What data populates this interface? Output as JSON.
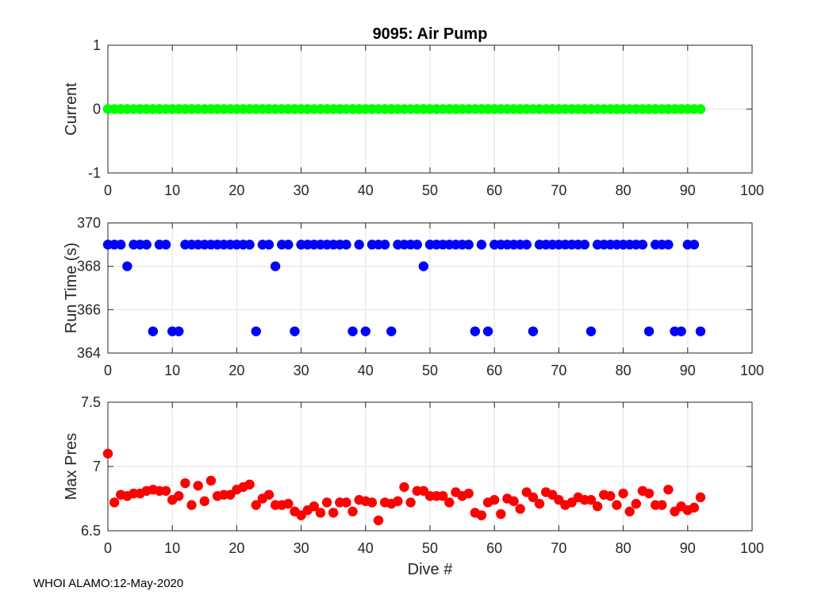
{
  "footer": "WHOI ALAMO:12-May-2020",
  "chart_data": [
    {
      "type": "scatter",
      "title": "9095: Air Pump",
      "xlabel": "",
      "ylabel": "Current",
      "xlim": [
        0,
        100
      ],
      "ylim": [
        -1,
        1
      ],
      "xticks": [
        "0",
        "10",
        "20",
        "30",
        "40",
        "50",
        "60",
        "70",
        "80",
        "90",
        "100"
      ],
      "yticks": [
        "-1",
        "0",
        "1"
      ],
      "ytick_values": [
        -1,
        0,
        1
      ],
      "grid": true,
      "color": "#00ff00",
      "x": [
        0,
        1,
        2,
        3,
        4,
        5,
        6,
        7,
        8,
        9,
        10,
        11,
        12,
        13,
        14,
        15,
        16,
        17,
        18,
        19,
        20,
        21,
        22,
        23,
        24,
        25,
        26,
        27,
        28,
        29,
        30,
        31,
        32,
        33,
        34,
        35,
        36,
        37,
        38,
        39,
        40,
        41,
        42,
        43,
        44,
        45,
        46,
        47,
        48,
        49,
        50,
        51,
        52,
        53,
        54,
        55,
        56,
        57,
        58,
        59,
        60,
        61,
        62,
        63,
        64,
        65,
        66,
        67,
        68,
        69,
        70,
        71,
        72,
        73,
        74,
        75,
        76,
        77,
        78,
        79,
        80,
        81,
        82,
        83,
        84,
        85,
        86,
        87,
        88,
        89,
        90,
        91,
        92
      ],
      "y": [
        0,
        0,
        0,
        0,
        0,
        0,
        0,
        0,
        0,
        0,
        0,
        0,
        0,
        0,
        0,
        0,
        0,
        0,
        0,
        0,
        0,
        0,
        0,
        0,
        0,
        0,
        0,
        0,
        0,
        0,
        0,
        0,
        0,
        0,
        0,
        0,
        0,
        0,
        0,
        0,
        0,
        0,
        0,
        0,
        0,
        0,
        0,
        0,
        0,
        0,
        0,
        0,
        0,
        0,
        0,
        0,
        0,
        0,
        0,
        0,
        0,
        0,
        0,
        0,
        0,
        0,
        0,
        0,
        0,
        0,
        0,
        0,
        0,
        0,
        0,
        0,
        0,
        0,
        0,
        0,
        0,
        0,
        0,
        0,
        0,
        0,
        0,
        0,
        0,
        0,
        0,
        0,
        0
      ]
    },
    {
      "type": "scatter",
      "title": "",
      "xlabel": "",
      "ylabel": "Run Time (s)",
      "xlim": [
        0,
        100
      ],
      "ylim": [
        364,
        370
      ],
      "xticks": [
        "0",
        "10",
        "20",
        "30",
        "40",
        "50",
        "60",
        "70",
        "80",
        "90",
        "100"
      ],
      "yticks": [
        "364",
        "366",
        "368",
        "370"
      ],
      "ytick_values": [
        364,
        366,
        368,
        370
      ],
      "grid": true,
      "color": "#0000ff",
      "x": [
        0,
        1,
        2,
        3,
        4,
        5,
        6,
        7,
        8,
        9,
        10,
        11,
        12,
        13,
        14,
        15,
        16,
        17,
        18,
        19,
        20,
        21,
        22,
        23,
        24,
        25,
        26,
        27,
        28,
        29,
        30,
        31,
        32,
        33,
        34,
        35,
        36,
        37,
        38,
        39,
        40,
        41,
        42,
        43,
        44,
        45,
        46,
        47,
        48,
        49,
        50,
        51,
        52,
        53,
        54,
        55,
        56,
        57,
        58,
        59,
        60,
        61,
        62,
        63,
        64,
        65,
        66,
        67,
        68,
        69,
        70,
        71,
        72,
        73,
        74,
        75,
        76,
        77,
        78,
        79,
        80,
        81,
        82,
        83,
        84,
        85,
        86,
        87,
        88,
        89,
        90,
        91,
        92
      ],
      "y": [
        369,
        369,
        369,
        368,
        369,
        369,
        369,
        365,
        369,
        369,
        365,
        365,
        369,
        369,
        369,
        369,
        369,
        369,
        369,
        369,
        369,
        369,
        369,
        365,
        369,
        369,
        368,
        369,
        369,
        365,
        369,
        369,
        369,
        369,
        369,
        369,
        369,
        369,
        365,
        369,
        365,
        369,
        369,
        369,
        365,
        369,
        369,
        369,
        369,
        368,
        369,
        369,
        369,
        369,
        369,
        369,
        369,
        365,
        369,
        365,
        369,
        369,
        369,
        369,
        369,
        369,
        365,
        369,
        369,
        369,
        369,
        369,
        369,
        369,
        369,
        365,
        369,
        369,
        369,
        369,
        369,
        369,
        369,
        369,
        365,
        369,
        369,
        369,
        365,
        365,
        369,
        369,
        365
      ]
    },
    {
      "type": "scatter",
      "title": "",
      "xlabel": "Dive #",
      "ylabel": "Max Pres",
      "xlim": [
        0,
        100
      ],
      "ylim": [
        6.5,
        7.5
      ],
      "xticks": [
        "0",
        "10",
        "20",
        "30",
        "40",
        "50",
        "60",
        "70",
        "80",
        "90",
        "100"
      ],
      "yticks": [
        "6.5",
        "7",
        "7.5"
      ],
      "ytick_values": [
        6.5,
        7,
        7.5
      ],
      "grid": true,
      "color": "#ff0000",
      "x": [
        0,
        1,
        2,
        3,
        4,
        5,
        6,
        7,
        8,
        9,
        10,
        11,
        12,
        13,
        14,
        15,
        16,
        17,
        18,
        19,
        20,
        21,
        22,
        23,
        24,
        25,
        26,
        27,
        28,
        29,
        30,
        31,
        32,
        33,
        34,
        35,
        36,
        37,
        38,
        39,
        40,
        41,
        42,
        43,
        44,
        45,
        46,
        47,
        48,
        49,
        50,
        51,
        52,
        53,
        54,
        55,
        56,
        57,
        58,
        59,
        60,
        61,
        62,
        63,
        64,
        65,
        66,
        67,
        68,
        69,
        70,
        71,
        72,
        73,
        74,
        75,
        76,
        77,
        78,
        79,
        80,
        81,
        82,
        83,
        84,
        85,
        86,
        87,
        88,
        89,
        90,
        91,
        92
      ],
      "y": [
        7.1,
        6.72,
        6.78,
        6.77,
        6.79,
        6.79,
        6.81,
        6.82,
        6.81,
        6.81,
        6.74,
        6.77,
        6.87,
        6.7,
        6.85,
        6.73,
        6.89,
        6.77,
        6.78,
        6.78,
        6.82,
        6.84,
        6.86,
        6.7,
        6.75,
        6.78,
        6.7,
        6.7,
        6.71,
        6.65,
        6.62,
        6.66,
        6.69,
        6.64,
        6.72,
        6.64,
        6.72,
        6.72,
        6.65,
        6.74,
        6.73,
        6.72,
        6.58,
        6.72,
        6.71,
        6.73,
        6.84,
        6.72,
        6.81,
        6.81,
        6.77,
        6.77,
        6.77,
        6.72,
        6.8,
        6.77,
        6.79,
        6.64,
        6.62,
        6.72,
        6.74,
        6.63,
        6.75,
        6.73,
        6.67,
        6.8,
        6.76,
        6.71,
        6.8,
        6.78,
        6.74,
        6.7,
        6.72,
        6.76,
        6.74,
        6.74,
        6.69,
        6.78,
        6.77,
        6.7,
        6.79,
        6.65,
        6.71,
        6.81,
        6.79,
        6.7,
        6.7,
        6.82,
        6.65,
        6.69,
        6.66,
        6.68,
        6.76
      ]
    }
  ]
}
